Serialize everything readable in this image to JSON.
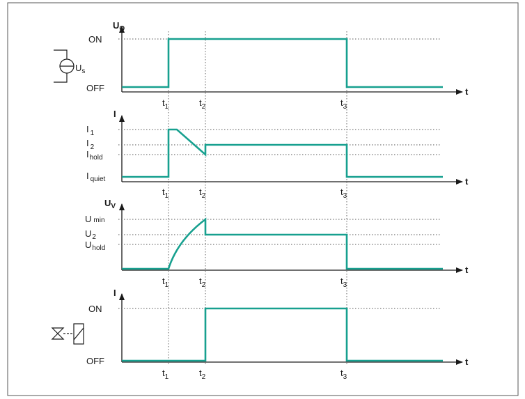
{
  "colors": {
    "signal": "#17a08f",
    "axis": "#1a1a1a",
    "frame": "#555555"
  },
  "time_axis": "t",
  "time_marks": [
    {
      "main": "t",
      "sub": "1"
    },
    {
      "main": "t",
      "sub": "2"
    },
    {
      "main": "t",
      "sub": "3"
    }
  ],
  "panels": [
    {
      "id": "uo",
      "y_axis": {
        "main": "U",
        "sub": "O"
      },
      "levels": [
        {
          "main": "ON",
          "sub": ""
        },
        {
          "main": "OFF",
          "sub": ""
        }
      ],
      "symbol": {
        "icon": "voltage-source-icon",
        "label_main": "U",
        "label_sub": "s"
      }
    },
    {
      "id": "current",
      "y_axis": {
        "main": "I",
        "sub": ""
      },
      "levels": [
        {
          "main": "I",
          "sub": "1"
        },
        {
          "main": "I",
          "sub": "2"
        },
        {
          "main": "I",
          "sub": "hold"
        },
        {
          "main": "I",
          "sub": "quiet"
        }
      ]
    },
    {
      "id": "uv",
      "y_axis": {
        "main": "U",
        "sub": "V"
      },
      "levels": [
        {
          "main": "U",
          "sub": "min"
        },
        {
          "main": "U",
          "sub": "2"
        },
        {
          "main": "U",
          "sub": "hold"
        }
      ]
    },
    {
      "id": "valve",
      "y_axis": {
        "main": "I",
        "sub": ""
      },
      "levels": [
        {
          "main": "ON",
          "sub": ""
        },
        {
          "main": "OFF",
          "sub": ""
        }
      ],
      "symbol": {
        "icon": "valve-solenoid-icon"
      }
    }
  ]
}
